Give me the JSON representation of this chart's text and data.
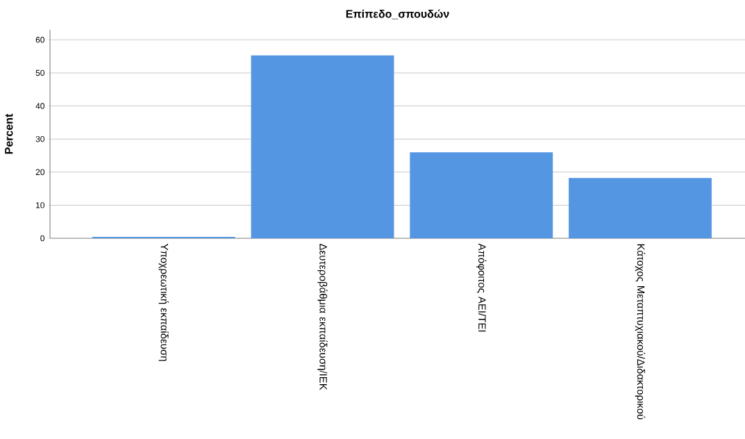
{
  "chart_data": {
    "type": "bar",
    "title": "Επίπεδο_σπουδών",
    "ylabel": "Percent",
    "categories": [
      "Υποχρεωτική εκπαίδευση",
      "Δευτεροβάθμια εκπαίδευση/ΙΕΚ",
      "Απόφοιτος ΑΕΙ/ΤΕΙ",
      "Κάτοχος Μεταπτυχιακού/Διδακτορικού"
    ],
    "values": [
      0.4,
      55.3,
      26.0,
      18.2
    ],
    "color": "#5596e3",
    "ylim": [
      0,
      63
    ],
    "yticks": [
      0,
      10,
      20,
      30,
      40,
      50,
      60
    ],
    "grid": "y"
  }
}
